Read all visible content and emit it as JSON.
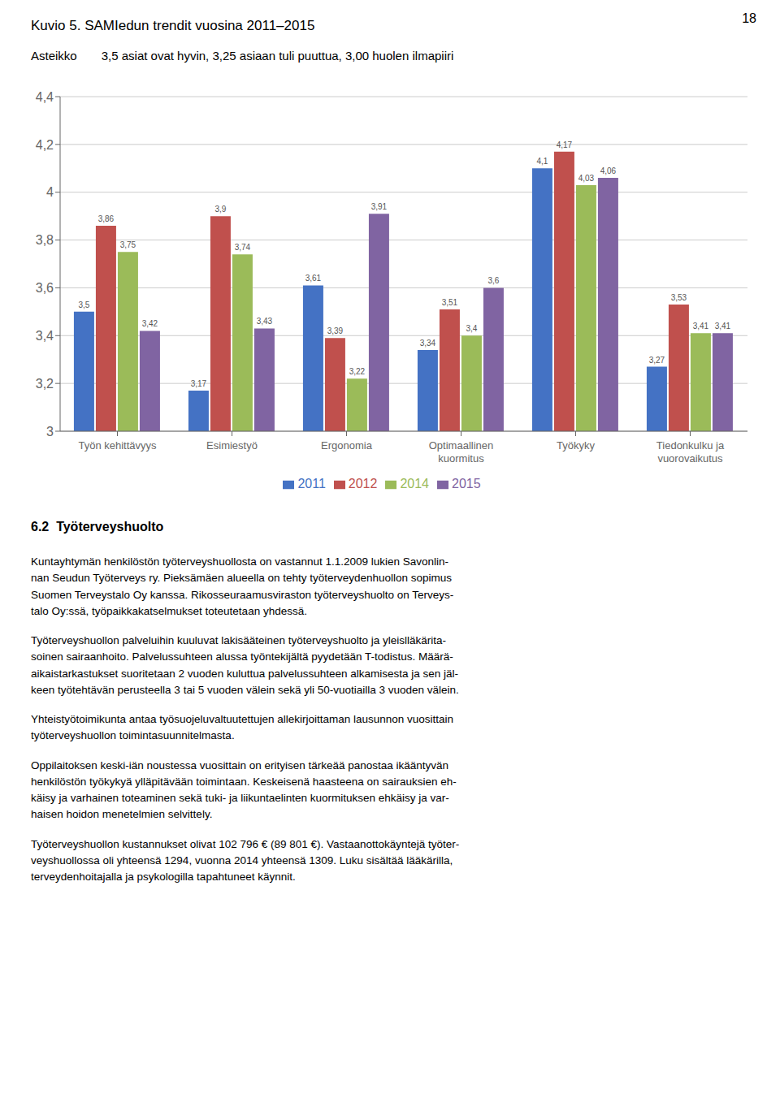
{
  "page_number": "18",
  "chart_data": {
    "type": "bar",
    "title": "Kuvio 5. SAMIedun trendit vuosina 2011–2015",
    "subtitle_label": "Asteikko",
    "subtitle": "3,5 asiat ovat hyvin, 3,25 asiaan tuli puuttua, 3,00 huolen ilmapiiri",
    "categories": [
      "Työn kehittävyys",
      "Esimiestyö",
      "Ergonomia",
      "Optimaallinen\nkuormitus",
      "Työkyky",
      "Tiedonkulku ja\nvuorovaikutus"
    ],
    "series": [
      {
        "name": "2011",
        "color": "#4472C4",
        "values": [
          3.5,
          3.17,
          3.61,
          3.34,
          4.1,
          3.27
        ],
        "value_labels": [
          "3,5",
          "3,17",
          "3,61",
          "3,34",
          "4,1",
          "3,27"
        ]
      },
      {
        "name": "2012",
        "color": "#C0504D",
        "values": [
          3.86,
          3.9,
          3.39,
          3.51,
          4.17,
          3.53
        ],
        "value_labels": [
          "3,86",
          "3,9",
          "3,39",
          "3,51",
          "4,17",
          "3,53"
        ]
      },
      {
        "name": "2014",
        "color": "#9BBB59",
        "values": [
          3.75,
          3.74,
          3.22,
          3.4,
          4.03,
          3.41
        ],
        "value_labels": [
          "3,75",
          "3,74",
          "3,22",
          "3,4",
          "4,03",
          "3,41"
        ]
      },
      {
        "name": "2015",
        "color": "#8064A2",
        "values": [
          3.42,
          3.43,
          3.91,
          3.6,
          4.06,
          3.41
        ],
        "value_labels": [
          "3,42",
          "3,43",
          "3,91",
          "3,6",
          "4,06",
          "3,41"
        ]
      }
    ],
    "ylim": [
      3.0,
      4.4
    ],
    "yticks": [
      3,
      {
        "value": 3.2,
        "label": "3,2"
      },
      {
        "value": 3.4,
        "label": "3,4"
      },
      {
        "value": 3.6,
        "label": "3,6"
      },
      {
        "value": 3.8,
        "label": "3,8"
      },
      4,
      {
        "value": 4.2,
        "label": "4,2"
      },
      {
        "value": 4.4,
        "label": "4,4"
      }
    ],
    "grid": true,
    "legend": "bottom",
    "data_labels": true
  },
  "section_heading": "6.2  Työterveyshuolto",
  "paragraphs": [
    "Kuntayhtymän henkilöstön työterveyshuollosta on vastannut 1.1.2009 lukien Savonlin-\nnan Seudun Työterveys ry. Pieksämäen alueella on tehty työterveydenhuollon sopimus\nSuomen Terveystalo Oy kanssa. Rikosseuraamusviraston työterveyshuolto on Terveys-\ntalo Oy:ssä, työpaikkakatselmukset toteutetaan yhdessä.",
    "Työterveyshuollon palveluihin kuuluvat lakisääteinen työterveyshuolto ja yleislläkärita-\nsoinen sairaanhoito. Palvelussuhteen alussa työntekijältä pyydetään T-todistus. Määrä-\naikaistarkastukset suoritetaan 2 vuoden kuluttua palvelussuhteen alkamisesta ja sen jäl-\nkeen työtehtävän perusteella 3 tai 5 vuoden välein sekä yli 50-vuotiailla 3 vuoden välein.",
    "Yhteistyötoimikunta antaa työsuojeluvaltuutettujen allekirjoittaman lausunnon vuosittain\ntyöterveyshuollon toimintasuunnitelmasta.",
    "Oppilaitoksen keski-iän noustessa vuosittain on erityisen tärkeää panostaa ikääntyvän\nhenkilöstön työkykyä ylläpitävään toimintaan. Keskeisenä haasteena on sairauksien eh-\nkäisy ja varhainen toteaminen sekä tuki- ja liikuntaelinten kuormituksen ehkäisy ja var-\nhaisen hoidon menetelmien selvittely.",
    "Työterveyshuollon kustannukset olivat 102 796 € (89 801 €). Vastaanottokäyntejä työter-\nveyshuollossa oli yhteensä 1294, vuonna 2014 yhteensä 1309. Luku sisältää lääkärilla,\nterveydenhoitajalla ja psykologilla tapahtuneet käynnit."
  ]
}
